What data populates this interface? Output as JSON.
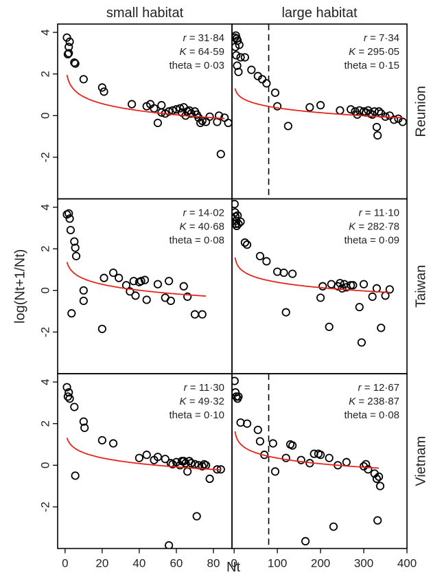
{
  "chart_data": {
    "type": "scatter",
    "xlabel": "Nt",
    "ylabel": "log(Nt+1/Nt)",
    "columns": [
      "small habitat",
      "large habitat"
    ],
    "rows": [
      "Reunion",
      "Taiwan",
      "Vietnam"
    ],
    "ylim": [
      -4,
      4.4
    ],
    "yticks": [
      4,
      2,
      0,
      -2
    ],
    "xaxes": {
      "small": {
        "xlim": [
          -4,
          90
        ],
        "ticks": [
          0,
          20,
          40,
          60,
          80
        ]
      },
      "large": {
        "xlim": [
          -5,
          400
        ],
        "ticks": [
          0,
          100,
          200,
          300,
          400
        ]
      }
    },
    "panels": [
      {
        "row": "Reunion",
        "col": "small habitat",
        "axis": "small",
        "stats": {
          "r": "31·84",
          "K": "64·59",
          "theta": "0·03"
        },
        "fit_x": [
          1,
          86
        ],
        "dashed_x": null,
        "points": [
          [
            1,
            3.75
          ],
          [
            2,
            3.3
          ],
          [
            2.5,
            3.55
          ],
          [
            1.5,
            2.95
          ],
          [
            2,
            3.0
          ],
          [
            5,
            2.55
          ],
          [
            5.5,
            2.5
          ],
          [
            10,
            1.75
          ],
          [
            20,
            1.35
          ],
          [
            21,
            1.15
          ],
          [
            36,
            0.55
          ],
          [
            44,
            0.45
          ],
          [
            46,
            0.55
          ],
          [
            48,
            0.35
          ],
          [
            50,
            -0.35
          ],
          [
            52,
            0.5
          ],
          [
            52,
            0.15
          ],
          [
            54,
            0.1
          ],
          [
            56,
            0.2
          ],
          [
            58,
            0.25
          ],
          [
            60,
            0.3
          ],
          [
            62,
            0.35
          ],
          [
            63,
            0.15
          ],
          [
            64,
            0.4
          ],
          [
            65,
            0.0
          ],
          [
            66,
            0.2
          ],
          [
            67,
            0.25
          ],
          [
            68,
            0.1
          ],
          [
            70,
            0.2
          ],
          [
            71,
            0.05
          ],
          [
            72,
            -0.1
          ],
          [
            73,
            -0.35
          ],
          [
            74,
            -0.25
          ],
          [
            76,
            -0.3
          ],
          [
            78,
            -0.05
          ],
          [
            82,
            -0.3
          ],
          [
            83,
            0.0
          ],
          [
            84,
            -1.85
          ],
          [
            86,
            -0.1
          ],
          [
            88,
            -0.35
          ]
        ]
      },
      {
        "row": "Reunion",
        "col": "large habitat",
        "axis": "large",
        "stats": {
          "r": "7·34",
          "K": "295·05",
          "theta": "0·15"
        },
        "fit_x": [
          2,
          390
        ],
        "dashed_x": 80,
        "points": [
          [
            2,
            3.75
          ],
          [
            4,
            3.85
          ],
          [
            6,
            3.7
          ],
          [
            8,
            3.6
          ],
          [
            3,
            3.3
          ],
          [
            5,
            2.9
          ],
          [
            7,
            2.4
          ],
          [
            10,
            2.1
          ],
          [
            12,
            3.4
          ],
          [
            15,
            2.8
          ],
          [
            25,
            2.8
          ],
          [
            40,
            2.2
          ],
          [
            55,
            1.9
          ],
          [
            65,
            1.75
          ],
          [
            75,
            1.55
          ],
          [
            95,
            1.1
          ],
          [
            100,
            0.45
          ],
          [
            125,
            -0.5
          ],
          [
            175,
            0.4
          ],
          [
            200,
            0.5
          ],
          [
            245,
            0.25
          ],
          [
            270,
            0.3
          ],
          [
            280,
            0.2
          ],
          [
            285,
            0.05
          ],
          [
            290,
            0.25
          ],
          [
            300,
            0.2
          ],
          [
            305,
            0.15
          ],
          [
            310,
            0.25
          ],
          [
            315,
            0.1
          ],
          [
            320,
            0.05
          ],
          [
            325,
            0.2
          ],
          [
            330,
            -0.55
          ],
          [
            332,
            -0.95
          ],
          [
            335,
            0.2
          ],
          [
            340,
            0.1
          ],
          [
            350,
            -0.05
          ],
          [
            360,
            0.0
          ],
          [
            370,
            -0.2
          ],
          [
            380,
            -0.15
          ],
          [
            390,
            -0.3
          ]
        ]
      },
      {
        "row": "Taiwan",
        "col": "small habitat",
        "axis": "small",
        "stats": {
          "r": "14·02",
          "K": "40·68",
          "theta": "0·08"
        },
        "fit_x": [
          1,
          76
        ],
        "dashed_x": null,
        "points": [
          [
            1,
            3.65
          ],
          [
            2,
            3.7
          ],
          [
            2.5,
            3.45
          ],
          [
            3,
            2.9
          ],
          [
            3.5,
            -1.1
          ],
          [
            5,
            2.35
          ],
          [
            5.5,
            2.05
          ],
          [
            6,
            1.65
          ],
          [
            10,
            0.0
          ],
          [
            10,
            -0.5
          ],
          [
            20,
            -1.85
          ],
          [
            21,
            0.6
          ],
          [
            26,
            0.85
          ],
          [
            29,
            0.6
          ],
          [
            33,
            0.25
          ],
          [
            35,
            -0.05
          ],
          [
            37,
            0.45
          ],
          [
            38,
            -0.25
          ],
          [
            40,
            0.4
          ],
          [
            41,
            0.45
          ],
          [
            43,
            0.5
          ],
          [
            44,
            -0.45
          ],
          [
            50,
            0.3
          ],
          [
            54,
            -0.35
          ],
          [
            56,
            0.45
          ],
          [
            57,
            -0.5
          ],
          [
            64,
            0.2
          ],
          [
            66,
            -0.3
          ],
          [
            70,
            -1.15
          ],
          [
            74,
            -1.15
          ]
        ]
      },
      {
        "row": "Taiwan",
        "col": "large habitat",
        "axis": "large",
        "stats": {
          "r": "11·10",
          "K": "282·78",
          "theta": "0·09"
        },
        "fit_x": [
          2,
          360
        ],
        "dashed_x": null,
        "points": [
          [
            1,
            4.15
          ],
          [
            2,
            3.75
          ],
          [
            3,
            3.55
          ],
          [
            4,
            3.2
          ],
          [
            5,
            3.35
          ],
          [
            6,
            3.1
          ],
          [
            8,
            3.6
          ],
          [
            10,
            3.2
          ],
          [
            15,
            3.3
          ],
          [
            25,
            2.3
          ],
          [
            30,
            2.2
          ],
          [
            60,
            1.65
          ],
          [
            75,
            1.4
          ],
          [
            100,
            0.9
          ],
          [
            115,
            0.85
          ],
          [
            120,
            -1.05
          ],
          [
            135,
            0.8
          ],
          [
            200,
            -0.35
          ],
          [
            205,
            0.2
          ],
          [
            220,
            -1.75
          ],
          [
            225,
            0.3
          ],
          [
            240,
            0.2
          ],
          [
            245,
            0.35
          ],
          [
            250,
            0.1
          ],
          [
            255,
            0.3
          ],
          [
            260,
            0.15
          ],
          [
            270,
            0.25
          ],
          [
            275,
            0.25
          ],
          [
            290,
            -0.8
          ],
          [
            295,
            -2.5
          ],
          [
            300,
            0.3
          ],
          [
            320,
            -0.3
          ],
          [
            330,
            0.1
          ],
          [
            340,
            -1.8
          ],
          [
            350,
            -0.25
          ],
          [
            360,
            0.05
          ]
        ]
      },
      {
        "row": "Vietnam",
        "col": "small habitat",
        "axis": "small",
        "stats": {
          "r": "11·30",
          "K": "49·32",
          "theta": "0·10"
        },
        "fit_x": [
          1,
          84
        ],
        "dashed_x": null,
        "points": [
          [
            1,
            3.75
          ],
          [
            1.5,
            3.3
          ],
          [
            2,
            3.5
          ],
          [
            2.5,
            3.2
          ],
          [
            5,
            2.8
          ],
          [
            5.5,
            -0.5
          ],
          [
            10,
            2.1
          ],
          [
            10.5,
            1.8
          ],
          [
            20,
            1.2
          ],
          [
            26,
            1.05
          ],
          [
            40,
            0.35
          ],
          [
            44,
            0.5
          ],
          [
            48,
            0.25
          ],
          [
            50,
            0.4
          ],
          [
            54,
            0.3
          ],
          [
            56,
            -3.85
          ],
          [
            57,
            0.1
          ],
          [
            58,
            0.05
          ],
          [
            60,
            0.15
          ],
          [
            62,
            0.0
          ],
          [
            63,
            0.2
          ],
          [
            64,
            0.2
          ],
          [
            65,
            0.1
          ],
          [
            66,
            -0.3
          ],
          [
            67,
            0.2
          ],
          [
            68,
            0.1
          ],
          [
            70,
            0.05
          ],
          [
            71,
            -2.45
          ],
          [
            72,
            0.0
          ],
          [
            74,
            -0.05
          ],
          [
            75,
            0.05
          ],
          [
            76,
            0.0
          ],
          [
            78,
            -0.65
          ],
          [
            82,
            -0.2
          ],
          [
            84,
            -0.2
          ]
        ]
      },
      {
        "row": "Vietnam",
        "col": "large habitat",
        "axis": "large",
        "stats": {
          "r": "12·67",
          "K": "238·87",
          "theta": "0·08"
        },
        "fit_x": [
          2,
          335
        ],
        "dashed_x": 80,
        "points": [
          [
            1,
            4.05
          ],
          [
            3,
            3.5
          ],
          [
            5,
            3.3
          ],
          [
            8,
            3.2
          ],
          [
            10,
            3.3
          ],
          [
            15,
            2.05
          ],
          [
            30,
            2.0
          ],
          [
            55,
            1.7
          ],
          [
            60,
            1.15
          ],
          [
            70,
            0.5
          ],
          [
            90,
            1.05
          ],
          [
            95,
            -0.3
          ],
          [
            120,
            0.35
          ],
          [
            130,
            1.0
          ],
          [
            135,
            0.95
          ],
          [
            155,
            0.25
          ],
          [
            165,
            -3.65
          ],
          [
            175,
            0.1
          ],
          [
            185,
            0.55
          ],
          [
            195,
            0.55
          ],
          [
            200,
            0.5
          ],
          [
            220,
            0.35
          ],
          [
            230,
            -2.95
          ],
          [
            240,
            0.0
          ],
          [
            260,
            0.15
          ],
          [
            300,
            -0.05
          ],
          [
            305,
            0.05
          ],
          [
            310,
            -0.2
          ],
          [
            325,
            -0.4
          ],
          [
            330,
            -0.65
          ],
          [
            332,
            -2.65
          ],
          [
            335,
            -0.55
          ],
          [
            338,
            -1.0
          ]
        ]
      }
    ]
  }
}
